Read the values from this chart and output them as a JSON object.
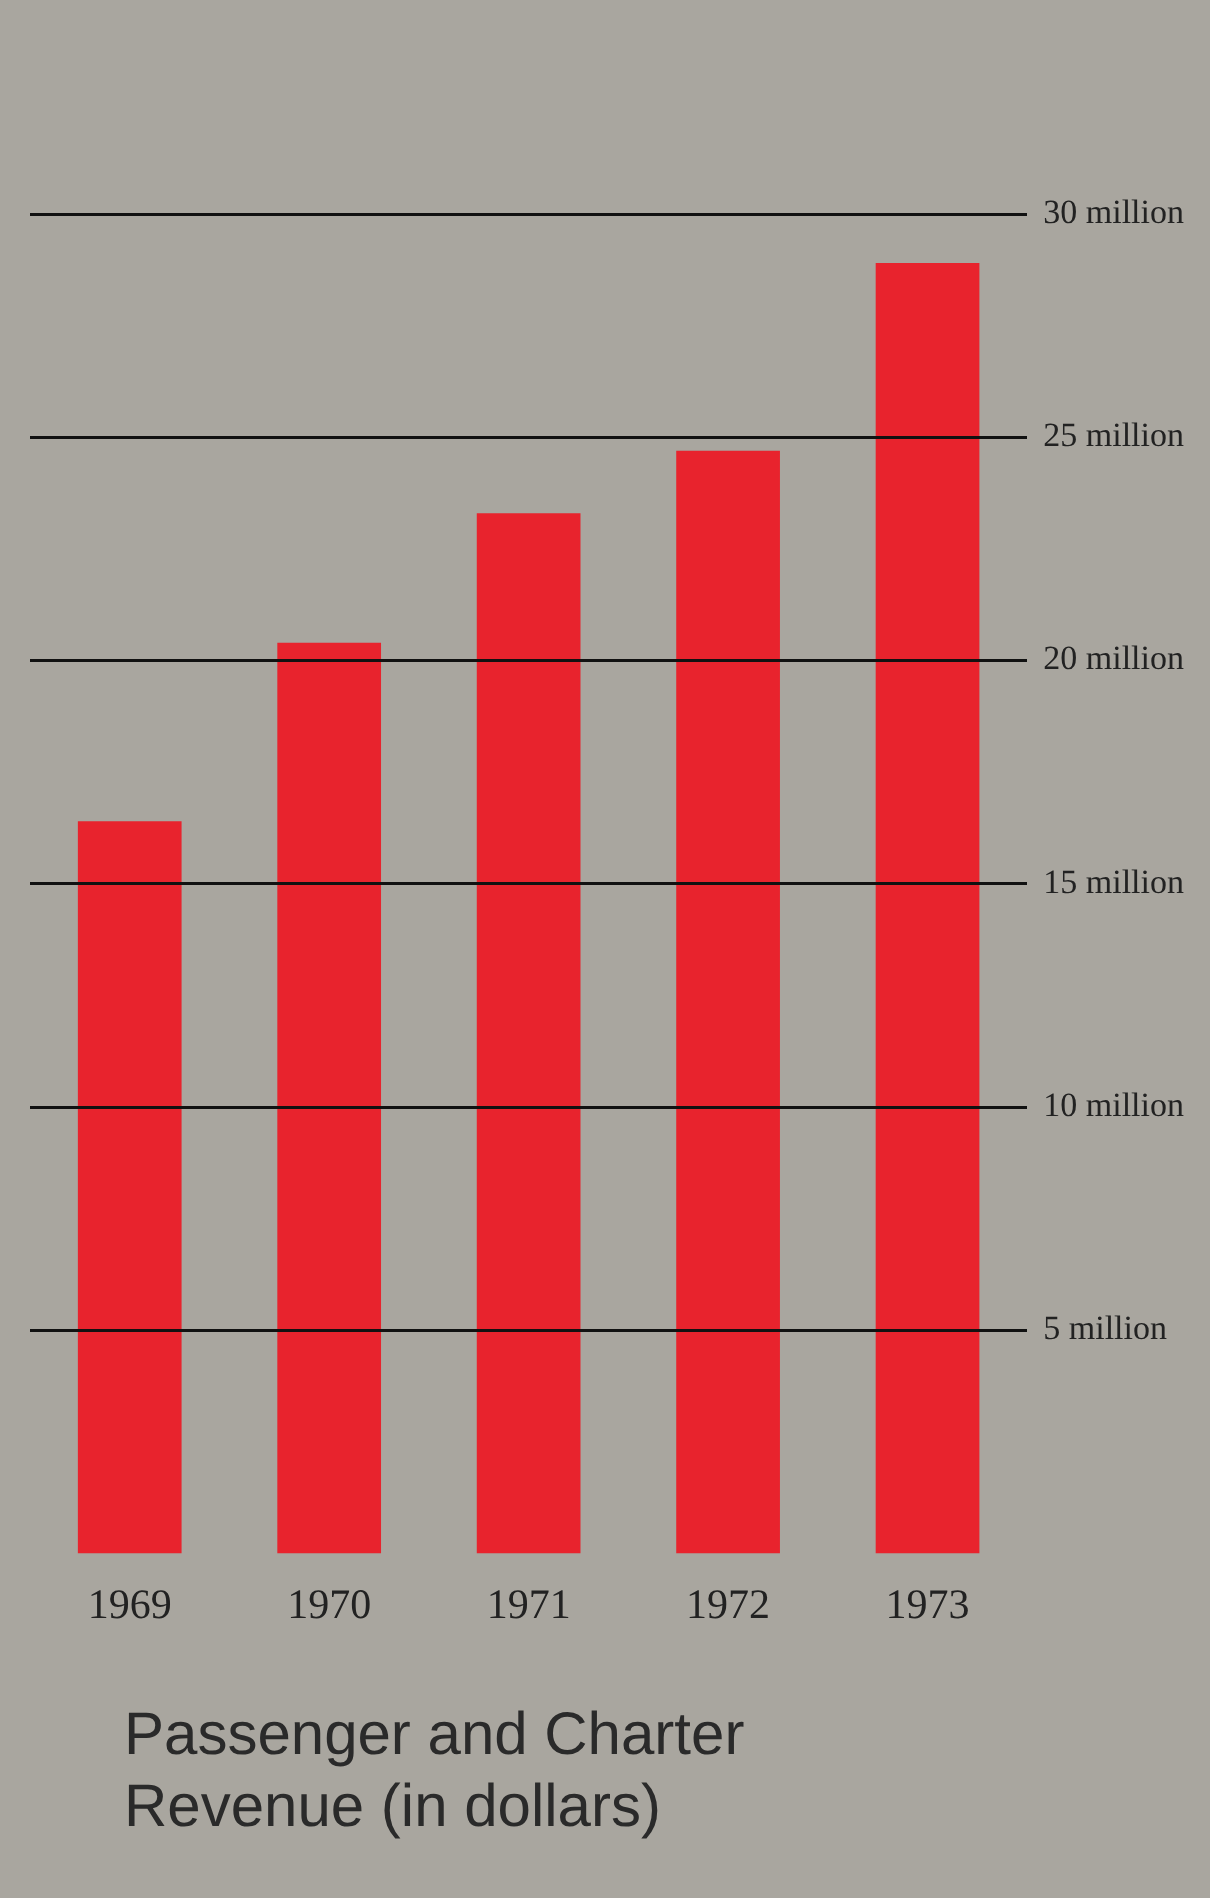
{
  "chart_data": {
    "type": "bar",
    "title": "Passenger and Charter Revenue (in dollars)",
    "categories": [
      "1969",
      "1970",
      "1971",
      "1972",
      "1973"
    ],
    "values": [
      16.4,
      20.4,
      23.3,
      24.7,
      28.9
    ],
    "color": "#e8232d",
    "ylim": [
      0,
      30
    ],
    "yticks": [
      {
        "value": 5,
        "label": "5 million"
      },
      {
        "value": 10,
        "label": "10 million"
      },
      {
        "value": 15,
        "label": "15 million"
      },
      {
        "value": 20,
        "label": "20 million"
      },
      {
        "value": 25,
        "label": "25 million"
      },
      {
        "value": 30,
        "label": "30 million"
      }
    ],
    "grid": "y"
  }
}
